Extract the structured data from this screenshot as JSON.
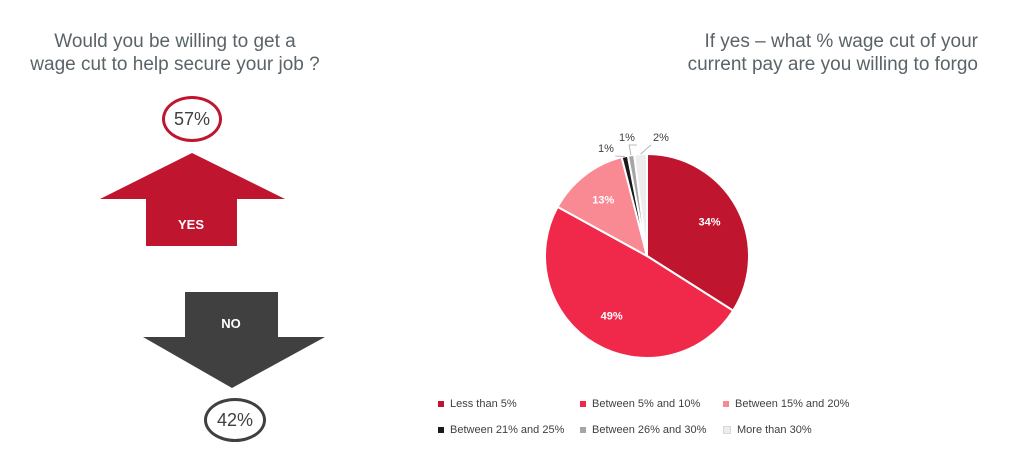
{
  "left": {
    "title_line1": "Would you be willing to get a",
    "title_line2": "wage cut to help secure your job ?",
    "yes_label": "YES",
    "yes_pct": "57%",
    "no_label": "NO",
    "no_pct": "42%",
    "yes_color": "#c0152f",
    "no_color": "#404040"
  },
  "right": {
    "title_line1": "If yes – what % wage cut of your",
    "title_line2": "current pay are you willing to forgo"
  },
  "chart_data": [
    {
      "type": "bar",
      "categories": [
        "YES",
        "NO"
      ],
      "values": [
        57,
        42
      ],
      "title": "Would you be willing to get a wage cut to help secure your job ?",
      "unit": "%"
    },
    {
      "type": "pie",
      "title": "If yes – what % wage cut of your current pay are you willing to forgo",
      "legend_position": "bottom",
      "slices": [
        {
          "label": "Less than 5%",
          "value": 34,
          "text": "34%",
          "color": "#c0152f"
        },
        {
          "label": "Between 5% and 10%",
          "value": 49,
          "text": "49%",
          "color": "#f0284a"
        },
        {
          "label": "Between 15% and 20%",
          "value": 13,
          "text": "13%",
          "color": "#f98a94"
        },
        {
          "label": "Between 21% and 25%",
          "value": 1,
          "text": "1%",
          "color": "#1a1a1a"
        },
        {
          "label": "Between 26% and 30%",
          "value": 1,
          "text": "1%",
          "color": "#a6a6a6"
        },
        {
          "label": "More than 30%",
          "value": 2,
          "text": "2%",
          "color": "#ededed"
        }
      ]
    }
  ]
}
